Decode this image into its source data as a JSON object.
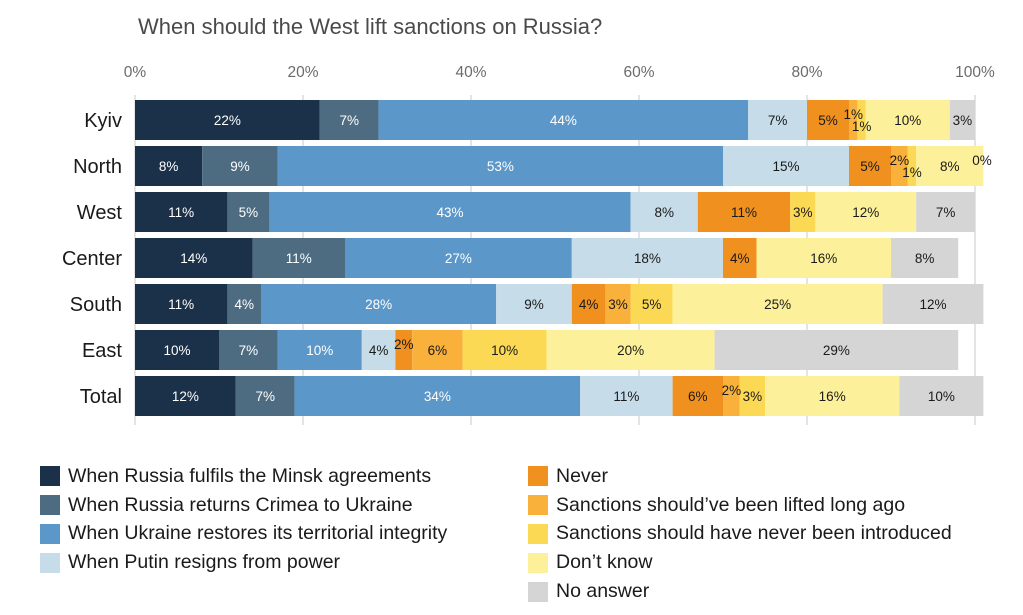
{
  "chart_data": {
    "type": "bar",
    "orientation": "horizontal",
    "stacked": true,
    "title": "When should the West lift sanctions on Russia?",
    "xlim": [
      0,
      100
    ],
    "x_ticks": [
      "0%",
      "20%",
      "40%",
      "60%",
      "80%",
      "100%"
    ],
    "grid": true,
    "legend_position": "bottom",
    "categories": [
      "Kyiv",
      "North",
      "West",
      "Center",
      "South",
      "East",
      "Total"
    ],
    "series": [
      {
        "name": "When Russia fulfils the Minsk agreements",
        "color": "#1b3149",
        "values": [
          22,
          8,
          11,
          14,
          11,
          10,
          12
        ],
        "labels": [
          "22%",
          "8%",
          "11%",
          "14%",
          "11%",
          "10%",
          "12%"
        ]
      },
      {
        "name": "When Russia returns Crimea to Ukraine",
        "color": "#4e6c81",
        "values": [
          7,
          9,
          5,
          11,
          4,
          7,
          7
        ],
        "labels": [
          "7%",
          "9%",
          "5%",
          "11%",
          "4%",
          "7%",
          "7%"
        ]
      },
      {
        "name": "When Ukraine restores its territorial integrity",
        "color": "#5b97c9",
        "values": [
          44,
          53,
          43,
          27,
          28,
          10,
          34
        ],
        "labels": [
          "44%",
          "53%",
          "43%",
          "27%",
          "28%",
          "10%",
          "34%"
        ]
      },
      {
        "name": "When Putin resigns from power",
        "color": "#c6dce8",
        "values": [
          7,
          15,
          8,
          18,
          9,
          4,
          11
        ],
        "labels": [
          "7%",
          "15%",
          "8%",
          "18%",
          "9%",
          "4%",
          "11%"
        ]
      },
      {
        "name": "Never",
        "color": "#f0901e",
        "values": [
          5,
          5,
          11,
          4,
          4,
          2,
          6
        ],
        "labels": [
          "5%",
          "5%",
          "11%",
          "4%",
          "4%",
          "2%",
          "6%"
        ]
      },
      {
        "name": "Sanctions should’ve been lifted long ago",
        "color": "#f9b13c",
        "values": [
          1,
          2,
          0,
          0,
          3,
          6,
          2
        ],
        "labels": [
          "1%",
          "2%",
          "",
          "",
          "3%",
          "6%",
          "2%"
        ]
      },
      {
        "name": "Sanctions should have never been introduced",
        "color": "#fcd955",
        "values": [
          1,
          1,
          3,
          0,
          5,
          10,
          3
        ],
        "labels": [
          "1%",
          "1%",
          "3%",
          "",
          "5%",
          "10%",
          "3%"
        ]
      },
      {
        "name": "Don’t know",
        "color": "#fdf09a",
        "values": [
          10,
          8,
          12,
          16,
          25,
          20,
          16
        ],
        "labels": [
          "10%",
          "8%",
          "12%",
          "16%",
          "25%",
          "20%",
          "16%"
        ]
      },
      {
        "name": "No answer",
        "color": "#d5d5d5",
        "values": [
          3,
          0,
          7,
          8,
          12,
          29,
          10
        ],
        "labels": [
          "3%",
          "0%",
          "7%",
          "8%",
          "12%",
          "29%",
          "10%"
        ]
      }
    ]
  }
}
